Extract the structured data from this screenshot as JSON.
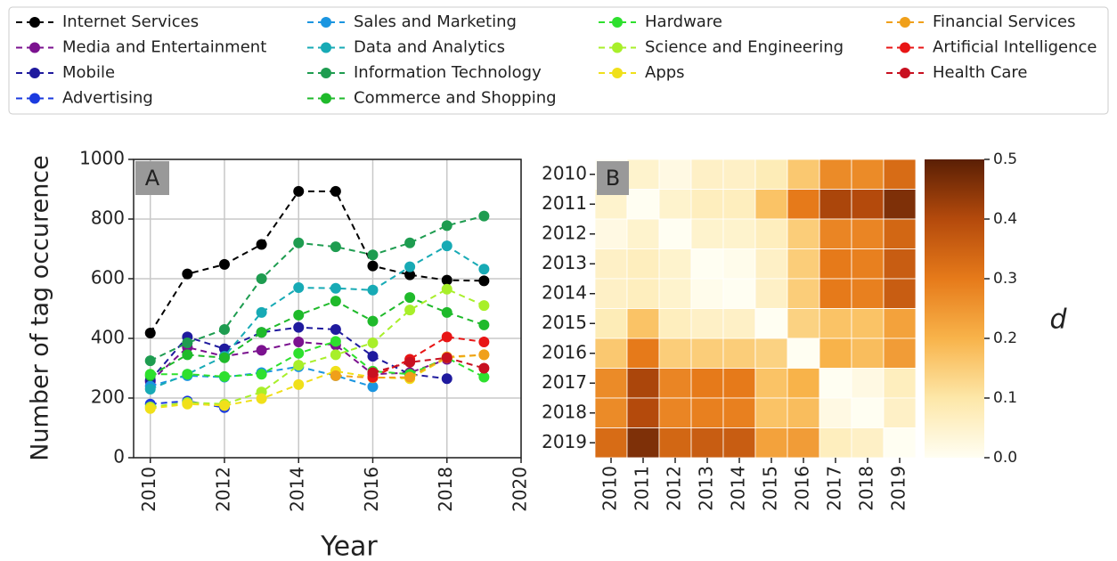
{
  "chart_data": [
    {
      "type": "line",
      "panel_label": "A",
      "xlabel": "Year",
      "ylabel": "Number of tag occurence",
      "x": [
        2010,
        2011,
        2012,
        2013,
        2014,
        2015,
        2016,
        2017,
        2018,
        2019
      ],
      "xlim": [
        2009.55,
        2020
      ],
      "xticks": [
        2010,
        2012,
        2014,
        2016,
        2018,
        2020
      ],
      "ylim": [
        0,
        1000
      ],
      "yticks": [
        0,
        200,
        400,
        600,
        800,
        1000
      ],
      "grid": true,
      "series": [
        {
          "name": "Internet Services",
          "color": "#000000",
          "values": [
            418,
            616,
            648,
            715,
            893,
            893,
            643,
            613,
            595,
            593
          ]
        },
        {
          "name": "Media and Entertainment",
          "color": "#7b128f",
          "values": [
            255,
            370,
            340,
            360,
            388,
            378,
            280,
            285,
            330,
            null
          ]
        },
        {
          "name": "Mobile",
          "color": "#1f1a9e",
          "values": [
            260,
            405,
            365,
            420,
            437,
            430,
            340,
            280,
            265,
            null
          ]
        },
        {
          "name": "Advertising",
          "color": "#1a3adf",
          "values": [
            180,
            190,
            168,
            null,
            null,
            null,
            null,
            null,
            null,
            null
          ]
        },
        {
          "name": "Sales and Marketing",
          "color": "#1b95e0",
          "values": [
            240,
            275,
            270,
            285,
            305,
            275,
            238,
            null,
            null,
            null
          ]
        },
        {
          "name": "Data and Analytics",
          "color": "#17aab5",
          "values": [
            230,
            280,
            340,
            487,
            570,
            568,
            562,
            640,
            710,
            632
          ]
        },
        {
          "name": "Information Technology",
          "color": "#1e9c50",
          "values": [
            325,
            385,
            430,
            600,
            720,
            707,
            680,
            720,
            778,
            810
          ]
        },
        {
          "name": "Commerce and Shopping",
          "color": "#1fba2b",
          "values": [
            275,
            345,
            335,
            420,
            478,
            525,
            458,
            537,
            487,
            445
          ]
        },
        {
          "name": "Hardware",
          "color": "#2ee02e",
          "values": [
            280,
            280,
            272,
            280,
            350,
            390,
            290,
            280,
            335,
            270
          ]
        },
        {
          "name": "Science and Engineering",
          "color": "#a8ef2a",
          "values": [
            170,
            185,
            180,
            220,
            310,
            345,
            385,
            495,
            565,
            510
          ]
        },
        {
          "name": "Apps",
          "color": "#f0e01a",
          "values": [
            165,
            180,
            175,
            198,
            245,
            290,
            270,
            265,
            335,
            345
          ]
        },
        {
          "name": "Financial Services",
          "color": "#f0a01a",
          "values": [
            null,
            null,
            null,
            null,
            null,
            275,
            268,
            270,
            338,
            345
          ]
        },
        {
          "name": "Artificial Intelligence",
          "color": "#e81515",
          "values": [
            null,
            null,
            null,
            null,
            null,
            null,
            270,
            330,
            405,
            388
          ]
        },
        {
          "name": "Health Care",
          "color": "#c81020",
          "values": [
            null,
            null,
            null,
            null,
            null,
            null,
            285,
            320,
            335,
            300
          ]
        }
      ]
    },
    {
      "type": "heatmap",
      "panel_label": "B",
      "x_categories": [
        "2010",
        "2011",
        "2012",
        "2013",
        "2014",
        "2015",
        "2016",
        "2017",
        "2018",
        "2019"
      ],
      "y_categories": [
        "2010",
        "2011",
        "2012",
        "2013",
        "2014",
        "2015",
        "2016",
        "2017",
        "2018",
        "2019"
      ],
      "values": [
        [
          0,
          0.05,
          0.02,
          0.06,
          0.06,
          0.08,
          0.16,
          0.27,
          0.27,
          0.33
        ],
        [
          0.05,
          0,
          0.05,
          0.07,
          0.07,
          0.17,
          0.3,
          0.41,
          0.4,
          0.46
        ],
        [
          0.02,
          0.05,
          0,
          0.05,
          0.05,
          0.07,
          0.15,
          0.28,
          0.28,
          0.34
        ],
        [
          0.06,
          0.07,
          0.05,
          0,
          0.01,
          0.06,
          0.15,
          0.3,
          0.29,
          0.36
        ],
        [
          0.06,
          0.07,
          0.05,
          0.01,
          0,
          0.06,
          0.15,
          0.3,
          0.29,
          0.36
        ],
        [
          0.08,
          0.17,
          0.07,
          0.06,
          0.06,
          0,
          0.14,
          0.17,
          0.17,
          0.23
        ],
        [
          0.16,
          0.3,
          0.15,
          0.15,
          0.15,
          0.14,
          0,
          0.2,
          0.18,
          0.24
        ],
        [
          0.27,
          0.41,
          0.28,
          0.3,
          0.3,
          0.17,
          0.2,
          0,
          0.02,
          0.07
        ],
        [
          0.27,
          0.4,
          0.28,
          0.29,
          0.29,
          0.17,
          0.18,
          0.02,
          0,
          0.06
        ],
        [
          0.33,
          0.46,
          0.34,
          0.36,
          0.36,
          0.23,
          0.24,
          0.07,
          0.06,
          0
        ]
      ],
      "colormap": [
        "#fffef2",
        "#fde7a8",
        "#f8b34a",
        "#e67a1a",
        "#b44a0c",
        "#5a1f05"
      ],
      "clim": [
        0,
        0.5
      ],
      "cticks": [
        {
          "value": 0,
          "label": "0.0"
        },
        0.1,
        0.2,
        0.3,
        0.4,
        0.5
      ],
      "colorbar_label": "d"
    }
  ]
}
